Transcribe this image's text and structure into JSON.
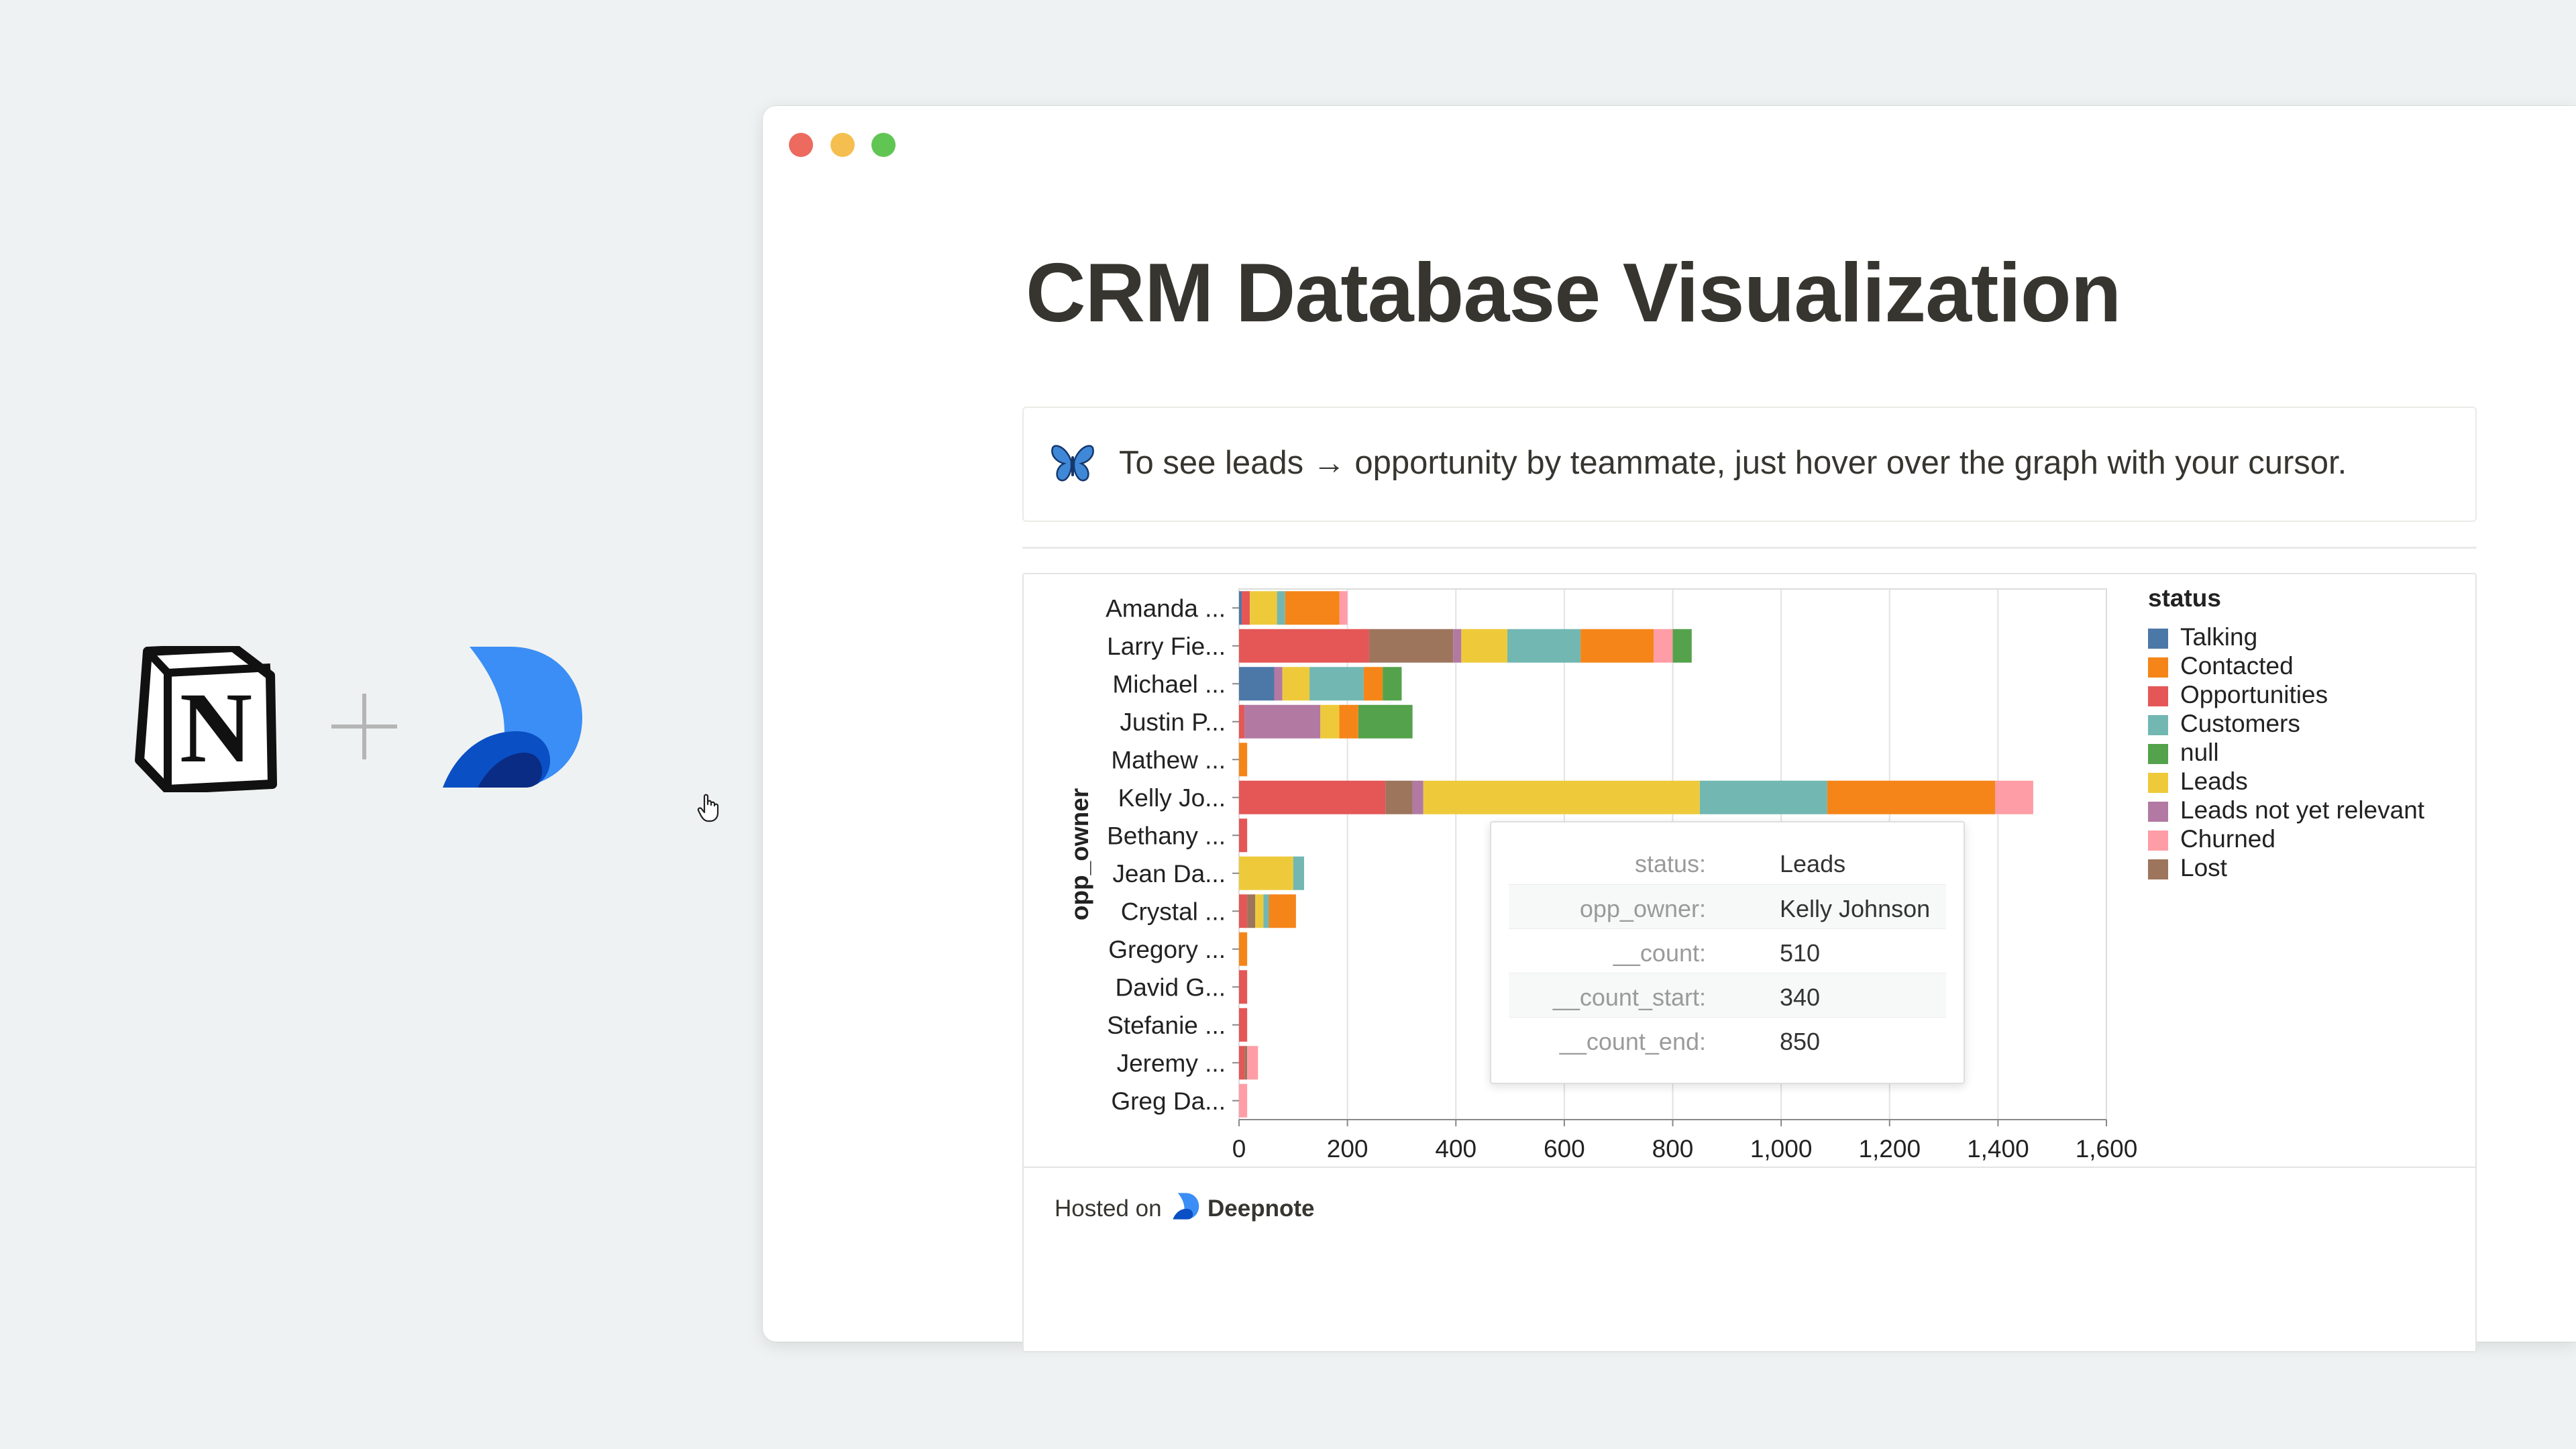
{
  "page": {
    "title": "CRM Database Visualization",
    "callout_text": "To see leads → opportunity by teammate, just hover over the graph with your cursor.",
    "callout_icon": "butterfly-icon",
    "footer": {
      "hosted_on": "Hosted on",
      "brand": "Deepnote"
    }
  },
  "tooltip": {
    "rows": [
      {
        "key": "status:",
        "value": "Leads"
      },
      {
        "key": "opp_owner:",
        "value": "Kelly Johnson"
      },
      {
        "key": "__count:",
        "value": "510"
      },
      {
        "key": "__count_start:",
        "value": "340"
      },
      {
        "key": "__count_end:",
        "value": "850"
      }
    ]
  },
  "chart_data": {
    "type": "bar",
    "orientation": "horizontal",
    "stacked": true,
    "title": "",
    "xlabel": "",
    "ylabel": "opp_owner",
    "xlim": [
      0,
      1600
    ],
    "x_ticks": [
      0,
      200,
      400,
      600,
      800,
      1000,
      1200,
      1400,
      1600
    ],
    "x_tick_labels": [
      "0",
      "200",
      "400",
      "600",
      "800",
      "1,000",
      "1,200",
      "1,400",
      "1,600"
    ],
    "grid": true,
    "legend_title": "status",
    "legend_position": "right",
    "categories": [
      "Amanda ...",
      "Larry Fie...",
      "Michael ...",
      "Justin P...",
      "Mathew ...",
      "Kelly Jo...",
      "Bethany ...",
      "Jean Da...",
      "Crystal ...",
      "Gregory ...",
      "David G...",
      "Stefanie ...",
      "Jeremy ...",
      "Greg Da..."
    ],
    "series": [
      {
        "name": "Talking",
        "color": "#4c78a8",
        "values": [
          5,
          0,
          65,
          0,
          0,
          0,
          0,
          0,
          0,
          0,
          0,
          0,
          0,
          0
        ]
      },
      {
        "name": "Opportunities",
        "color": "#e45756",
        "values": [
          15,
          240,
          0,
          10,
          0,
          270,
          15,
          0,
          15,
          0,
          15,
          15,
          10,
          0
        ]
      },
      {
        "name": "Lost",
        "color": "#9d755d",
        "values": [
          0,
          155,
          0,
          0,
          0,
          50,
          0,
          0,
          15,
          0,
          0,
          0,
          5,
          0
        ]
      },
      {
        "name": "Leads not yet relevant",
        "color": "#b279a2",
        "values": [
          0,
          15,
          15,
          140,
          0,
          20,
          0,
          0,
          0,
          0,
          0,
          0,
          0,
          0
        ]
      },
      {
        "name": "Leads",
        "color": "#eeca3b",
        "values": [
          50,
          85,
          50,
          35,
          0,
          510,
          0,
          100,
          15,
          0,
          0,
          0,
          0,
          0
        ]
      },
      {
        "name": "Customers",
        "color": "#72b7b2",
        "values": [
          15,
          135,
          100,
          0,
          0,
          235,
          0,
          20,
          10,
          0,
          0,
          0,
          0,
          0
        ]
      },
      {
        "name": "Contacted",
        "color": "#f58518",
        "values": [
          100,
          135,
          35,
          35,
          15,
          310,
          0,
          0,
          50,
          15,
          0,
          0,
          0,
          0
        ]
      },
      {
        "name": "Churned",
        "color": "#ff9da6",
        "values": [
          15,
          35,
          0,
          0,
          0,
          70,
          0,
          0,
          0,
          0,
          0,
          0,
          20,
          15
        ]
      },
      {
        "name": "null",
        "color": "#54a24b",
        "values": [
          0,
          35,
          35,
          100,
          0,
          0,
          0,
          0,
          0,
          0,
          0,
          0,
          0,
          0
        ]
      }
    ],
    "legend_order": [
      "Talking",
      "Contacted",
      "Opportunities",
      "Customers",
      "null",
      "Leads",
      "Leads not yet relevant",
      "Churned",
      "Lost"
    ]
  }
}
